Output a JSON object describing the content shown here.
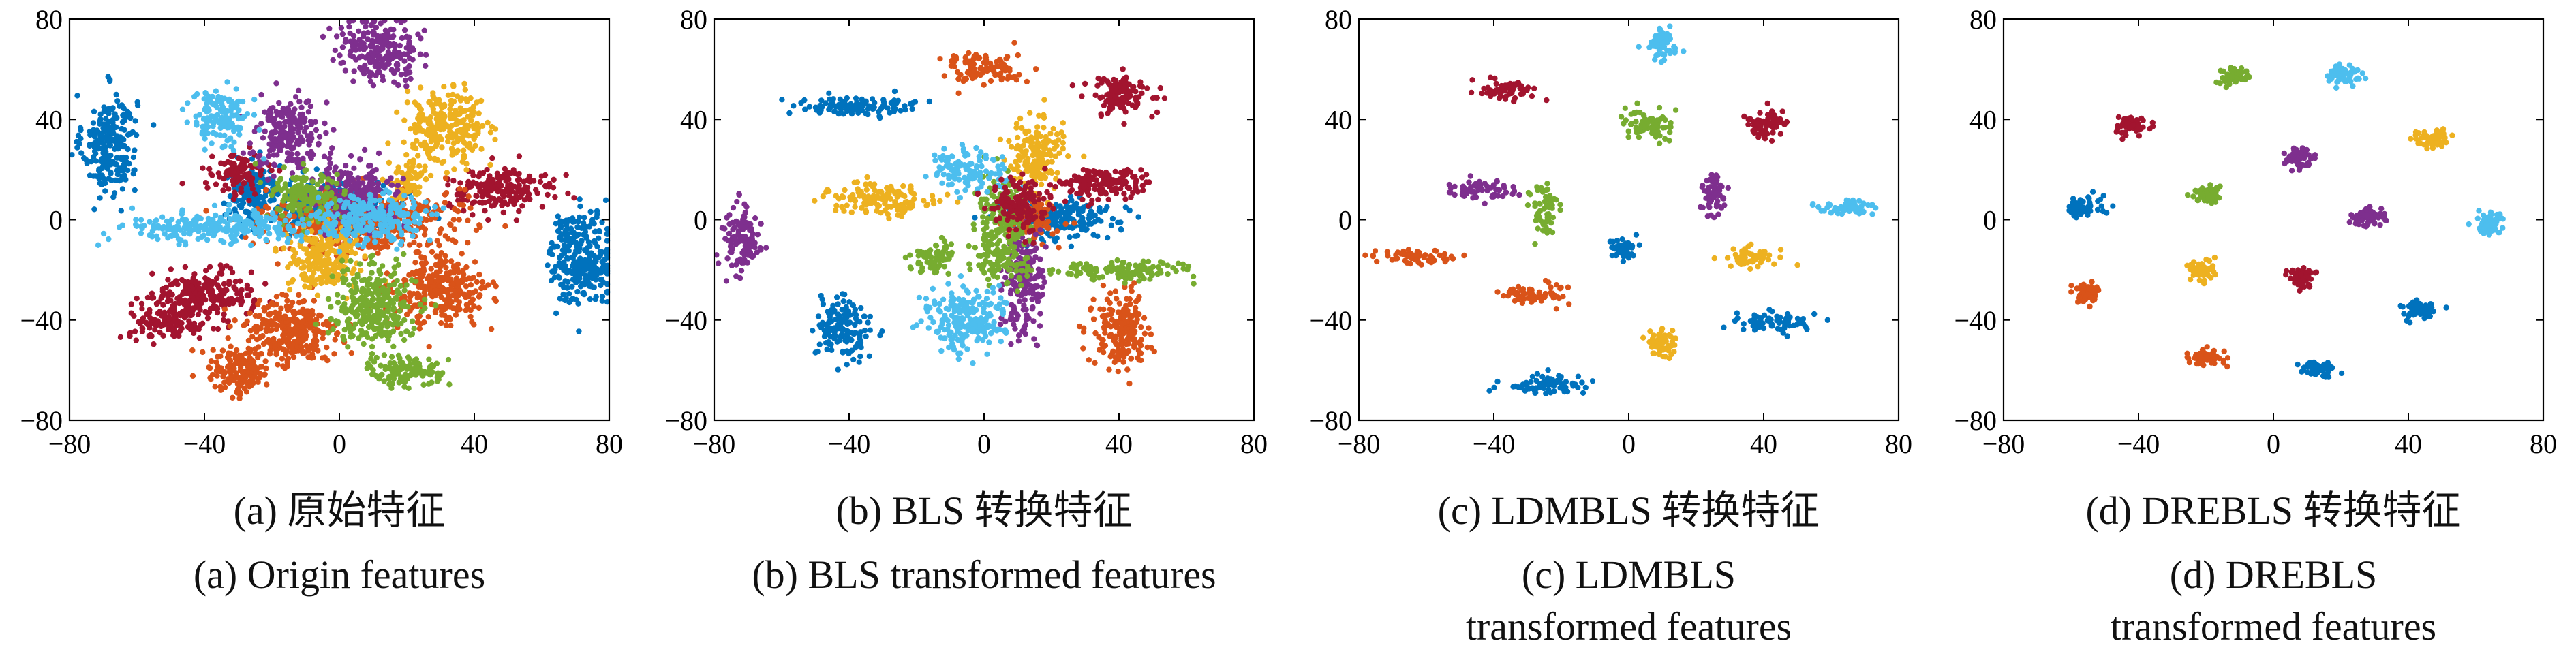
{
  "palette": [
    "#0072BD",
    "#D95319",
    "#EDB120",
    "#7E2F8E",
    "#77AC30",
    "#4DBEEE",
    "#A2142F"
  ],
  "chart_data": [
    {
      "type": "scatter",
      "caption_cn": "(a) 原始特征",
      "caption_en": "(a) Origin features",
      "xlim": [
        -80,
        80
      ],
      "ylim": [
        -80,
        80
      ],
      "xticks": [
        "−80",
        "−40",
        "0",
        "40",
        "80"
      ],
      "yticks": [
        "80",
        "40",
        "0",
        "−40",
        "−80"
      ],
      "clusters": [
        {
          "x": -68,
          "y": 30,
          "sx": 4,
          "sy": 10,
          "c": 0
        },
        {
          "x": 0,
          "y": 5,
          "sx": 10,
          "sy": 5,
          "c": 0
        },
        {
          "x": 72,
          "y": -15,
          "sx": 5,
          "sy": 9,
          "c": 0
        },
        {
          "x": -25,
          "y": 10,
          "sx": 4,
          "sy": 6,
          "c": 0
        },
        {
          "x": -40,
          "y": -30,
          "sx": 7,
          "sy": 5,
          "c": 6
        },
        {
          "x": -50,
          "y": -40,
          "sx": 6,
          "sy": 4,
          "c": 6
        },
        {
          "x": 48,
          "y": 12,
          "sx": 8,
          "sy": 4,
          "c": 6
        },
        {
          "x": -30,
          "y": 18,
          "sx": 4,
          "sy": 4,
          "c": 6
        },
        {
          "x": -30,
          "y": -60,
          "sx": 5,
          "sy": 5,
          "c": 1
        },
        {
          "x": -15,
          "y": -45,
          "sx": 7,
          "sy": 7,
          "c": 1
        },
        {
          "x": 30,
          "y": -28,
          "sx": 7,
          "sy": 7,
          "c": 1
        },
        {
          "x": 5,
          "y": 0,
          "sx": 14,
          "sy": 6,
          "c": 1
        },
        {
          "x": -5,
          "y": -15,
          "sx": 5,
          "sy": 7,
          "c": 2
        },
        {
          "x": 32,
          "y": 37,
          "sx": 6,
          "sy": 7,
          "c": 2
        },
        {
          "x": 20,
          "y": 15,
          "sx": 3,
          "sy": 4,
          "c": 2
        },
        {
          "x": 12,
          "y": 68,
          "sx": 6,
          "sy": 6,
          "c": 3
        },
        {
          "x": -15,
          "y": 35,
          "sx": 5,
          "sy": 7,
          "c": 3
        },
        {
          "x": 5,
          "y": 10,
          "sx": 6,
          "sy": 6,
          "c": 3
        },
        {
          "x": 10,
          "y": -35,
          "sx": 6,
          "sy": 8,
          "c": 4
        },
        {
          "x": 20,
          "y": -60,
          "sx": 6,
          "sy": 3,
          "c": 4
        },
        {
          "x": -10,
          "y": 10,
          "sx": 5,
          "sy": 5,
          "c": 4
        },
        {
          "x": -35,
          "y": 40,
          "sx": 4,
          "sy": 6,
          "c": 5
        },
        {
          "x": -35,
          "y": -3,
          "sx": 14,
          "sy": 3,
          "c": 5
        },
        {
          "x": 10,
          "y": 0,
          "sx": 8,
          "sy": 5,
          "c": 5
        }
      ]
    },
    {
      "type": "scatter",
      "caption_cn": "(b) BLS 转换特征",
      "caption_en": "(b) BLS transformed features",
      "xlim": [
        -80,
        80
      ],
      "ylim": [
        -80,
        80
      ],
      "xticks": [
        "−80",
        "−40",
        "0",
        "40",
        "80"
      ],
      "yticks": [
        "80",
        "40",
        "0",
        "−40",
        "−80"
      ],
      "clusters": [
        {
          "x": -42,
          "y": -42,
          "sx": 4,
          "sy": 6,
          "c": 0
        },
        {
          "x": -38,
          "y": 45,
          "sx": 9,
          "sy": 2,
          "c": 0
        },
        {
          "x": 20,
          "y": 0,
          "sx": 9,
          "sy": 4,
          "c": 0
        },
        {
          "x": 0,
          "y": 60,
          "sx": 6,
          "sy": 3,
          "c": 1
        },
        {
          "x": 40,
          "y": -45,
          "sx": 4,
          "sy": 8,
          "c": 1
        },
        {
          "x": 15,
          "y": 0,
          "sx": 4,
          "sy": 4,
          "c": 1
        },
        {
          "x": -30,
          "y": 8,
          "sx": 8,
          "sy": 3,
          "c": 2
        },
        {
          "x": 15,
          "y": 25,
          "sx": 4,
          "sy": 7,
          "c": 2
        },
        {
          "x": -72,
          "y": -8,
          "sx": 3,
          "sy": 6,
          "c": 3
        },
        {
          "x": 12,
          "y": -25,
          "sx": 3,
          "sy": 10,
          "c": 3
        },
        {
          "x": 40,
          "y": -20,
          "sx": 10,
          "sy": 2,
          "c": 4
        },
        {
          "x": -15,
          "y": -15,
          "sx": 4,
          "sy": 3,
          "c": 4
        },
        {
          "x": 5,
          "y": -5,
          "sx": 4,
          "sy": 10,
          "c": 4
        },
        {
          "x": -5,
          "y": -40,
          "sx": 6,
          "sy": 6,
          "c": 5
        },
        {
          "x": -5,
          "y": 20,
          "sx": 5,
          "sy": 4,
          "c": 5
        },
        {
          "x": 40,
          "y": 50,
          "sx": 5,
          "sy": 4,
          "c": 6
        },
        {
          "x": 35,
          "y": 14,
          "sx": 8,
          "sy": 3,
          "c": 6
        },
        {
          "x": 10,
          "y": 5,
          "sx": 4,
          "sy": 6,
          "c": 6
        }
      ]
    },
    {
      "type": "scatter",
      "caption_cn": "(c) LDMBLS 转换特征",
      "caption_en": "(c) LDMBLS transformed features",
      "xlim": [
        -80,
        80
      ],
      "ylim": [
        -80,
        80
      ],
      "xticks": [
        "−80",
        "−40",
        "0",
        "40",
        "80"
      ],
      "yticks": [
        "80",
        "40",
        "0",
        "−40",
        "−80"
      ],
      "clusters": [
        {
          "x": 10,
          "y": 70,
          "sx": 2,
          "sy": 3,
          "c": 5
        },
        {
          "x": -36,
          "y": 52,
          "sx": 4,
          "sy": 2,
          "c": 6
        },
        {
          "x": 5,
          "y": 38,
          "sx": 4,
          "sy": 3,
          "c": 4
        },
        {
          "x": 40,
          "y": 38,
          "sx": 3,
          "sy": 3,
          "c": 6
        },
        {
          "x": -45,
          "y": 12,
          "sx": 5,
          "sy": 2,
          "c": 3
        },
        {
          "x": 25,
          "y": 11,
          "sx": 2,
          "sy": 4,
          "c": 3
        },
        {
          "x": 65,
          "y": 5,
          "sx": 5,
          "sy": 1.5,
          "c": 5
        },
        {
          "x": -25,
          "y": 5,
          "sx": 2,
          "sy": 5,
          "c": 4
        },
        {
          "x": -2,
          "y": -12,
          "sx": 2,
          "sy": 2,
          "c": 0
        },
        {
          "x": 35,
          "y": -15,
          "sx": 4,
          "sy": 2,
          "c": 2
        },
        {
          "x": -63,
          "y": -15,
          "sx": 7,
          "sy": 1.5,
          "c": 1
        },
        {
          "x": -28,
          "y": -30,
          "sx": 5,
          "sy": 2,
          "c": 1
        },
        {
          "x": 42,
          "y": -41,
          "sx": 6,
          "sy": 2,
          "c": 0
        },
        {
          "x": 10,
          "y": -49,
          "sx": 2,
          "sy": 3,
          "c": 2
        },
        {
          "x": -25,
          "y": -66,
          "sx": 6,
          "sy": 2,
          "c": 0
        }
      ]
    },
    {
      "type": "scatter",
      "caption_cn": "(d) DREBLS 转换特征",
      "caption_en": "(d) DREBLS transformed features",
      "xlim": [
        -80,
        80
      ],
      "ylim": [
        -80,
        80
      ],
      "xticks": [
        "−80",
        "−40",
        "0",
        "40",
        "80"
      ],
      "yticks": [
        "80",
        "40",
        "0",
        "−40",
        "−80"
      ],
      "clusters": [
        {
          "x": 20,
          "y": 58,
          "sx": 2.5,
          "sy": 2,
          "c": 5
        },
        {
          "x": -12,
          "y": 57,
          "sx": 2,
          "sy": 2,
          "c": 4
        },
        {
          "x": -42,
          "y": 38,
          "sx": 2.5,
          "sy": 2,
          "c": 6
        },
        {
          "x": 47,
          "y": 32,
          "sx": 2.5,
          "sy": 2,
          "c": 2
        },
        {
          "x": 8,
          "y": 25,
          "sx": 2.5,
          "sy": 2,
          "c": 3
        },
        {
          "x": -20,
          "y": 10,
          "sx": 2.5,
          "sy": 2,
          "c": 4
        },
        {
          "x": -57,
          "y": 5,
          "sx": 2.5,
          "sy": 2,
          "c": 0
        },
        {
          "x": 28,
          "y": 1,
          "sx": 2.5,
          "sy": 2,
          "c": 3
        },
        {
          "x": 64,
          "y": -2,
          "sx": 2,
          "sy": 2.5,
          "c": 5
        },
        {
          "x": -22,
          "y": -20,
          "sx": 2,
          "sy": 2,
          "c": 2
        },
        {
          "x": 8,
          "y": -23,
          "sx": 2,
          "sy": 2,
          "c": 6
        },
        {
          "x": -55,
          "y": -29,
          "sx": 2,
          "sy": 2,
          "c": 1
        },
        {
          "x": 43,
          "y": -36,
          "sx": 2.5,
          "sy": 2,
          "c": 0
        },
        {
          "x": -20,
          "y": -55,
          "sx": 2.5,
          "sy": 1.5,
          "c": 1
        },
        {
          "x": 13,
          "y": -59,
          "sx": 2.5,
          "sy": 1.5,
          "c": 0
        }
      ]
    }
  ]
}
